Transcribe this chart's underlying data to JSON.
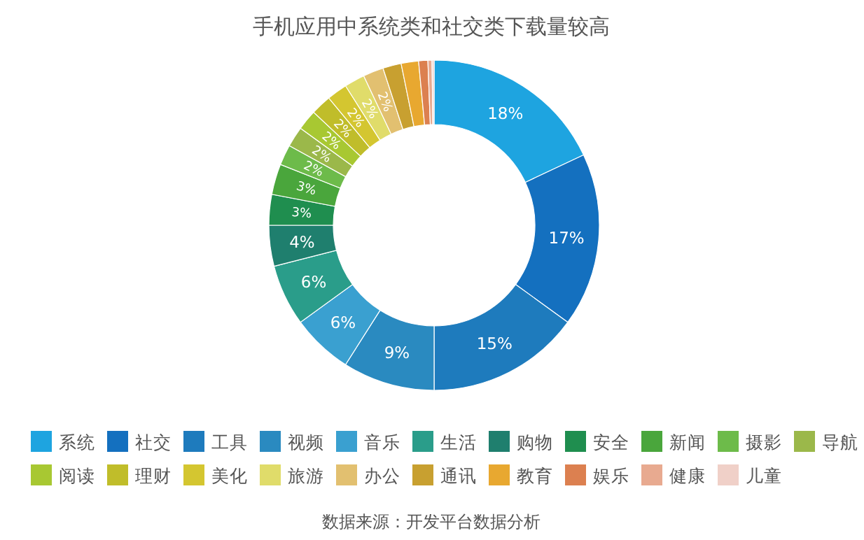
{
  "chart_data": {
    "type": "donut",
    "title": "手机应用中系统类和社交类下载量较高",
    "categories": [
      "系统",
      "社交",
      "工具",
      "视频",
      "音乐",
      "生活",
      "购物",
      "安全",
      "新闻",
      "摄影",
      "导航",
      "阅读",
      "理财",
      "美化",
      "旅游",
      "办公",
      "通讯",
      "教育",
      "娱乐",
      "健康",
      "儿童"
    ],
    "values": [
      18,
      17,
      15,
      9,
      6,
      6,
      4,
      3,
      3,
      2,
      2,
      2,
      2,
      2,
      2,
      2,
      1.8,
      1.7,
      0.9,
      0.4,
      0.2
    ],
    "value_labels": [
      "18%",
      "17%",
      "15%",
      "9%",
      "6%",
      "6%",
      "4%",
      "3%",
      "3%",
      "2%",
      "2%",
      "2%",
      "2%",
      "2%",
      "2%",
      "2%",
      null,
      null,
      null,
      null,
      null
    ],
    "colors": [
      "#1ea4e0",
      "#1470bf",
      "#1e7bbd",
      "#2a8ac0",
      "#3aa0d0",
      "#2a9d8a",
      "#1f7f6e",
      "#1f8e4f",
      "#4aa63c",
      "#6dbb4a",
      "#9bb84a",
      "#a8c832",
      "#c0bd2a",
      "#d4c630",
      "#e0dc6a",
      "#e2c070",
      "#c8a030",
      "#e8a830",
      "#dc8050",
      "#e8aa90",
      "#f0d0c8"
    ],
    "legend": "bottom",
    "annotations": [
      "数据来源：开发平台数据分析"
    ]
  }
}
